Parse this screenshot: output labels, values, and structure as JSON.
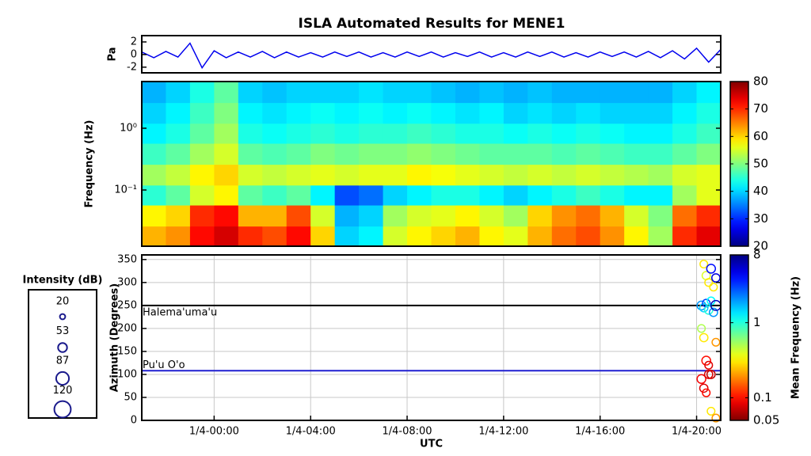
{
  "chart_data": [
    {
      "type": "line",
      "title": "ISLA Automated Results for MENE1",
      "ylabel": "Pa",
      "color": "#0000ee",
      "xlim": [
        -3,
        21
      ],
      "ylim": [
        -2.9,
        3
      ],
      "yticks": [
        -2,
        0,
        2
      ],
      "x": [
        -3,
        -2.5,
        -2,
        -1.5,
        -1,
        -0.5,
        0,
        0.5,
        1,
        1.5,
        2,
        2.5,
        3,
        3.5,
        4,
        4.5,
        5,
        5.5,
        6,
        6.5,
        7,
        7.5,
        8,
        8.5,
        9,
        9.5,
        10,
        10.5,
        11,
        11.5,
        12,
        12.5,
        13,
        13.5,
        14,
        14.5,
        15,
        15.5,
        16,
        16.5,
        17,
        17.5,
        18,
        18.5,
        19,
        19.5,
        20,
        20.5,
        21
      ],
      "values": [
        0.4,
        -0.5,
        0.5,
        -0.4,
        1.8,
        -2.1,
        0.6,
        -0.5,
        0.4,
        -0.4,
        0.5,
        -0.5,
        0.4,
        -0.4,
        0.3,
        -0.4,
        0.4,
        -0.3,
        0.4,
        -0.4,
        0.3,
        -0.4,
        0.4,
        -0.3,
        0.4,
        -0.4,
        0.3,
        -0.3,
        0.4,
        -0.4,
        0.3,
        -0.4,
        0.4,
        -0.3,
        0.4,
        -0.4,
        0.3,
        -0.4,
        0.4,
        -0.3,
        0.4,
        -0.4,
        0.5,
        -0.5,
        0.6,
        -0.7,
        1.0,
        -1.2,
        0.8
      ]
    },
    {
      "type": "heatmap",
      "ylabel": "Frequency (Hz)",
      "ylog": true,
      "colormap": "jet",
      "xlim": [
        -3,
        21
      ],
      "ylim": [
        0.0123,
        5.7
      ],
      "yticks": [
        {
          "value": 0.1,
          "label": "10⁻¹"
        },
        {
          "value": 1,
          "label": "10⁰"
        }
      ],
      "xbins": [
        -3,
        -2,
        -1,
        0,
        1,
        2,
        3,
        4,
        5,
        6,
        7,
        8,
        9,
        10,
        11,
        12,
        13,
        14,
        15,
        16,
        17,
        18,
        19,
        20,
        21
      ],
      "ybins": [
        0.0123,
        0.026,
        0.057,
        0.12,
        0.26,
        0.57,
        1.2,
        2.6,
        5.7
      ],
      "values": [
        [
          62,
          64,
          72,
          75,
          70,
          68,
          72,
          60,
          40,
          42,
          55,
          58,
          60,
          62,
          58,
          56,
          62,
          66,
          68,
          64,
          58,
          52,
          70,
          74
        ],
        [
          58,
          60,
          70,
          72,
          62,
          62,
          68,
          55,
          38,
          40,
          52,
          55,
          56,
          58,
          55,
          52,
          60,
          64,
          66,
          62,
          55,
          50,
          66,
          70
        ],
        [
          45,
          48,
          55,
          58,
          48,
          46,
          48,
          42,
          32,
          34,
          40,
          42,
          44,
          44,
          42,
          40,
          42,
          44,
          46,
          44,
          42,
          42,
          52,
          56
        ],
        [
          52,
          54,
          58,
          60,
          55,
          54,
          55,
          56,
          55,
          56,
          56,
          58,
          57,
          56,
          55,
          54,
          55,
          54,
          55,
          54,
          53,
          52,
          55,
          56
        ],
        [
          46,
          48,
          52,
          55,
          48,
          47,
          48,
          50,
          49,
          50,
          50,
          51,
          50,
          49,
          48,
          48,
          48,
          47,
          48,
          47,
          46,
          46,
          48,
          50
        ],
        [
          42,
          44,
          48,
          52,
          44,
          43,
          44,
          45,
          44,
          45,
          45,
          46,
          45,
          44,
          44,
          43,
          44,
          43,
          44,
          43,
          42,
          42,
          44,
          46
        ],
        [
          40,
          42,
          46,
          50,
          42,
          41,
          42,
          43,
          42,
          43,
          42,
          43,
          42,
          41,
          42,
          40,
          41,
          40,
          41,
          40,
          40,
          40,
          42,
          44
        ],
        [
          38,
          40,
          44,
          48,
          40,
          39,
          40,
          40,
          40,
          41,
          40,
          40,
          39,
          38,
          39,
          38,
          39,
          38,
          38,
          38,
          38,
          38,
          40,
          42
        ]
      ],
      "colorbar": {
        "lim": [
          20,
          80
        ],
        "ticks": [
          20,
          30,
          40,
          50,
          60,
          70,
          80
        ]
      }
    },
    {
      "type": "scatter",
      "xlabel": "UTC",
      "ylabel": "Azimuth (Degrees)",
      "grid": true,
      "colormap": "jet",
      "xlim": [
        -3,
        21
      ],
      "ylim": [
        0,
        360
      ],
      "xticks": [
        {
          "value": 0,
          "label": "1/4-00:00"
        },
        {
          "value": 4,
          "label": "1/4-04:00"
        },
        {
          "value": 8,
          "label": "1/4-08:00"
        },
        {
          "value": 12,
          "label": "1/4-12:00"
        },
        {
          "value": 16,
          "label": "1/4-16:00"
        },
        {
          "value": 20,
          "label": "1/4-20:00"
        }
      ],
      "yticks": [
        0,
        50,
        100,
        150,
        200,
        250,
        300,
        350
      ],
      "x": [
        20.3,
        20.4,
        20.5,
        20.6,
        20.7,
        20.8,
        20.2,
        20.3,
        20.4,
        20.5,
        20.6,
        20.7,
        20.8,
        20.2,
        20.3,
        20.4,
        20.5,
        20.6,
        20.8,
        20.2,
        20.3,
        20.4,
        20.5,
        20.6,
        20.8
      ],
      "values": [
        340,
        315,
        300,
        330,
        290,
        310,
        250,
        245,
        255,
        240,
        260,
        235,
        250,
        200,
        180,
        130,
        120,
        100,
        170,
        90,
        70,
        60,
        100,
        20,
        5
      ],
      "sizes": [
        40,
        45,
        40,
        50,
        40,
        45,
        50,
        45,
        40,
        45,
        40,
        45,
        60,
        40,
        45,
        50,
        40,
        45,
        40,
        50,
        45,
        40,
        45,
        40,
        40
      ],
      "frequencies": [
        0.3,
        0.4,
        0.3,
        4,
        0.3,
        5,
        2,
        1.5,
        3,
        1,
        1.2,
        2,
        6,
        0.5,
        0.3,
        0.1,
        0.08,
        0.07,
        0.2,
        0.09,
        0.08,
        0.1,
        0.08,
        0.3,
        0.2
      ],
      "reference_lines": [
        {
          "label": "Halema'uma'u",
          "value": 250,
          "color": "#000000"
        },
        {
          "label": "Pu'u O'o",
          "value": 108,
          "color": "#1f1fd0"
        }
      ],
      "size_legend": {
        "title": "Intensity (dB)",
        "values": [
          20,
          53,
          87,
          120
        ]
      },
      "colorbar": {
        "label": "Mean Frequency (Hz)",
        "lim": [
          0.05,
          8
        ],
        "ticks": [
          0.05,
          0.1,
          1,
          8
        ],
        "log": true,
        "reversed": true
      }
    }
  ]
}
